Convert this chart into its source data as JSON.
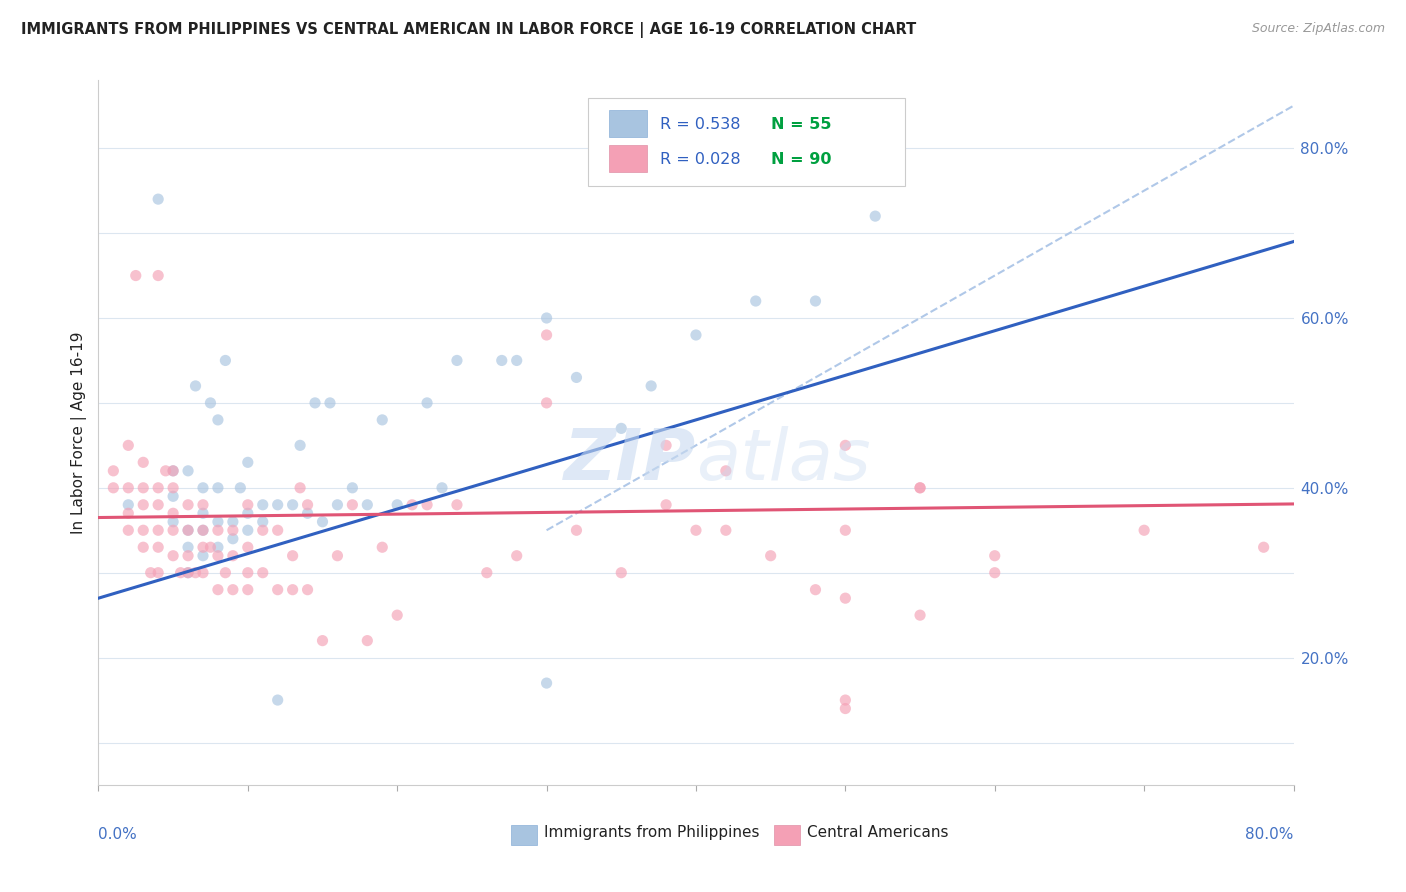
{
  "title": "IMMIGRANTS FROM PHILIPPINES VS CENTRAL AMERICAN IN LABOR FORCE | AGE 16-19 CORRELATION CHART",
  "source": "Source: ZipAtlas.com",
  "ylabel": "In Labor Force | Age 16-19",
  "right_yticks": [
    0.2,
    0.4,
    0.6,
    0.8
  ],
  "right_yticklabels": [
    "20.0%",
    "40.0%",
    "60.0%",
    "80.0%"
  ],
  "xlim": [
    0.0,
    0.8
  ],
  "ylim": [
    0.05,
    0.88
  ],
  "philippines_R": "0.538",
  "philippines_N": "55",
  "central_R": "0.028",
  "central_N": "90",
  "philippines_color": "#a8c4e0",
  "central_color": "#f4a0b5",
  "philippines_line_color": "#3060c0",
  "central_line_color": "#e05575",
  "ref_line_color": "#b0c8e8",
  "legend_R_color": "#3060c0",
  "legend_N_color": "#00a040",
  "watermark_color": "#c8daf0",
  "philippines_x": [
    0.02,
    0.04,
    0.05,
    0.05,
    0.05,
    0.06,
    0.06,
    0.06,
    0.06,
    0.065,
    0.07,
    0.07,
    0.07,
    0.07,
    0.075,
    0.08,
    0.08,
    0.08,
    0.08,
    0.085,
    0.09,
    0.09,
    0.095,
    0.1,
    0.1,
    0.1,
    0.11,
    0.11,
    0.12,
    0.12,
    0.13,
    0.135,
    0.14,
    0.145,
    0.15,
    0.155,
    0.16,
    0.17,
    0.18,
    0.19,
    0.2,
    0.22,
    0.23,
    0.24,
    0.27,
    0.28,
    0.3,
    0.32,
    0.35,
    0.37,
    0.4,
    0.44,
    0.48,
    0.52,
    0.3
  ],
  "philippines_y": [
    0.38,
    0.74,
    0.36,
    0.39,
    0.42,
    0.3,
    0.33,
    0.35,
    0.42,
    0.52,
    0.32,
    0.35,
    0.37,
    0.4,
    0.5,
    0.33,
    0.36,
    0.4,
    0.48,
    0.55,
    0.34,
    0.36,
    0.4,
    0.35,
    0.37,
    0.43,
    0.36,
    0.38,
    0.15,
    0.38,
    0.38,
    0.45,
    0.37,
    0.5,
    0.36,
    0.5,
    0.38,
    0.4,
    0.38,
    0.48,
    0.38,
    0.5,
    0.4,
    0.55,
    0.55,
    0.55,
    0.6,
    0.53,
    0.47,
    0.52,
    0.58,
    0.62,
    0.62,
    0.72,
    0.17
  ],
  "central_x": [
    0.01,
    0.01,
    0.02,
    0.02,
    0.02,
    0.02,
    0.025,
    0.03,
    0.03,
    0.03,
    0.03,
    0.03,
    0.035,
    0.04,
    0.04,
    0.04,
    0.04,
    0.04,
    0.04,
    0.045,
    0.05,
    0.05,
    0.05,
    0.05,
    0.05,
    0.055,
    0.06,
    0.06,
    0.06,
    0.06,
    0.065,
    0.07,
    0.07,
    0.07,
    0.07,
    0.075,
    0.08,
    0.08,
    0.08,
    0.085,
    0.09,
    0.09,
    0.09,
    0.1,
    0.1,
    0.1,
    0.1,
    0.11,
    0.11,
    0.12,
    0.12,
    0.13,
    0.13,
    0.135,
    0.14,
    0.14,
    0.15,
    0.16,
    0.17,
    0.18,
    0.19,
    0.2,
    0.21,
    0.22,
    0.24,
    0.26,
    0.28,
    0.3,
    0.32,
    0.35,
    0.38,
    0.4,
    0.42,
    0.45,
    0.48,
    0.5,
    0.55,
    0.6,
    0.7,
    0.78,
    0.5,
    0.5,
    0.5,
    0.55,
    0.3,
    0.38,
    0.42,
    0.5,
    0.55,
    0.6
  ],
  "central_y": [
    0.4,
    0.42,
    0.35,
    0.37,
    0.4,
    0.45,
    0.65,
    0.33,
    0.35,
    0.38,
    0.4,
    0.43,
    0.3,
    0.3,
    0.33,
    0.35,
    0.38,
    0.4,
    0.65,
    0.42,
    0.32,
    0.35,
    0.37,
    0.4,
    0.42,
    0.3,
    0.3,
    0.32,
    0.35,
    0.38,
    0.3,
    0.3,
    0.33,
    0.35,
    0.38,
    0.33,
    0.28,
    0.32,
    0.35,
    0.3,
    0.28,
    0.32,
    0.35,
    0.28,
    0.3,
    0.33,
    0.38,
    0.3,
    0.35,
    0.28,
    0.35,
    0.28,
    0.32,
    0.4,
    0.28,
    0.38,
    0.22,
    0.32,
    0.38,
    0.22,
    0.33,
    0.25,
    0.38,
    0.38,
    0.38,
    0.3,
    0.32,
    0.5,
    0.35,
    0.3,
    0.38,
    0.35,
    0.35,
    0.32,
    0.28,
    0.27,
    0.25,
    0.3,
    0.35,
    0.33,
    0.45,
    0.35,
    0.14,
    0.4,
    0.58,
    0.45,
    0.42,
    0.15,
    0.4,
    0.32
  ],
  "bg_color": "#ffffff",
  "grid_color": "#dce6f0",
  "marker_size": 65,
  "marker_alpha": 0.65,
  "font_color": "#222222"
}
